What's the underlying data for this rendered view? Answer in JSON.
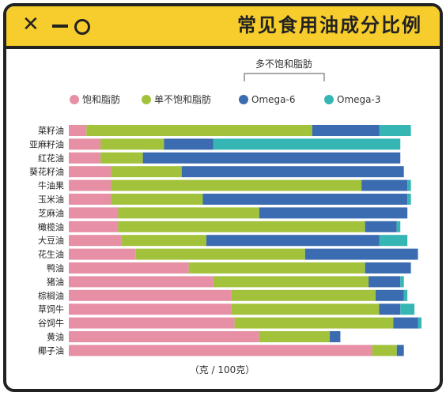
{
  "header": {
    "title": "常见食用油成分比例",
    "close_icon": "x-icon",
    "minimize_icon": "minus-icon",
    "maximize_icon": "circle-icon",
    "background_color": "#f6cd2c"
  },
  "chart_data": {
    "type": "bar",
    "orientation": "horizontal",
    "stacked": true,
    "group_label": "多不饱和脂肪",
    "unit_label": "（克 / 100克）",
    "xlim": [
      0,
      100
    ],
    "categories": [
      "菜籽油",
      "亚麻籽油",
      "红花油",
      "葵花籽油",
      "牛油果",
      "玉米油",
      "芝麻油",
      "橄榄油",
      "大豆油",
      "花生油",
      "鸭油",
      "猪油",
      "棕榈油",
      "草饲牛",
      "谷饲牛",
      "黄油",
      "椰子油"
    ],
    "series": [
      {
        "name": "饱和脂肪",
        "color": "#e68fa5",
        "values": [
          5,
          9,
          9,
          12,
          12,
          12,
          14,
          14,
          15,
          19,
          34,
          41,
          46,
          46,
          47,
          54,
          86
        ]
      },
      {
        "name": "单不饱和脂肪",
        "color": "#a3c23c",
        "values": [
          64,
          18,
          12,
          20,
          71,
          26,
          40,
          70,
          24,
          48,
          50,
          44,
          41,
          42,
          45,
          20,
          7
        ]
      },
      {
        "name": "Omega-6",
        "color": "#3b6bb0",
        "values": [
          19,
          14,
          73,
          63,
          13,
          58,
          42,
          9,
          49,
          32,
          13,
          9,
          8,
          6,
          7,
          3,
          2
        ]
      },
      {
        "name": "Omega-3",
        "color": "#35b6b4",
        "values": [
          9,
          53,
          0,
          0,
          1,
          1,
          0,
          1,
          8,
          0,
          0,
          1,
          1,
          4,
          1,
          0,
          0
        ]
      }
    ]
  }
}
